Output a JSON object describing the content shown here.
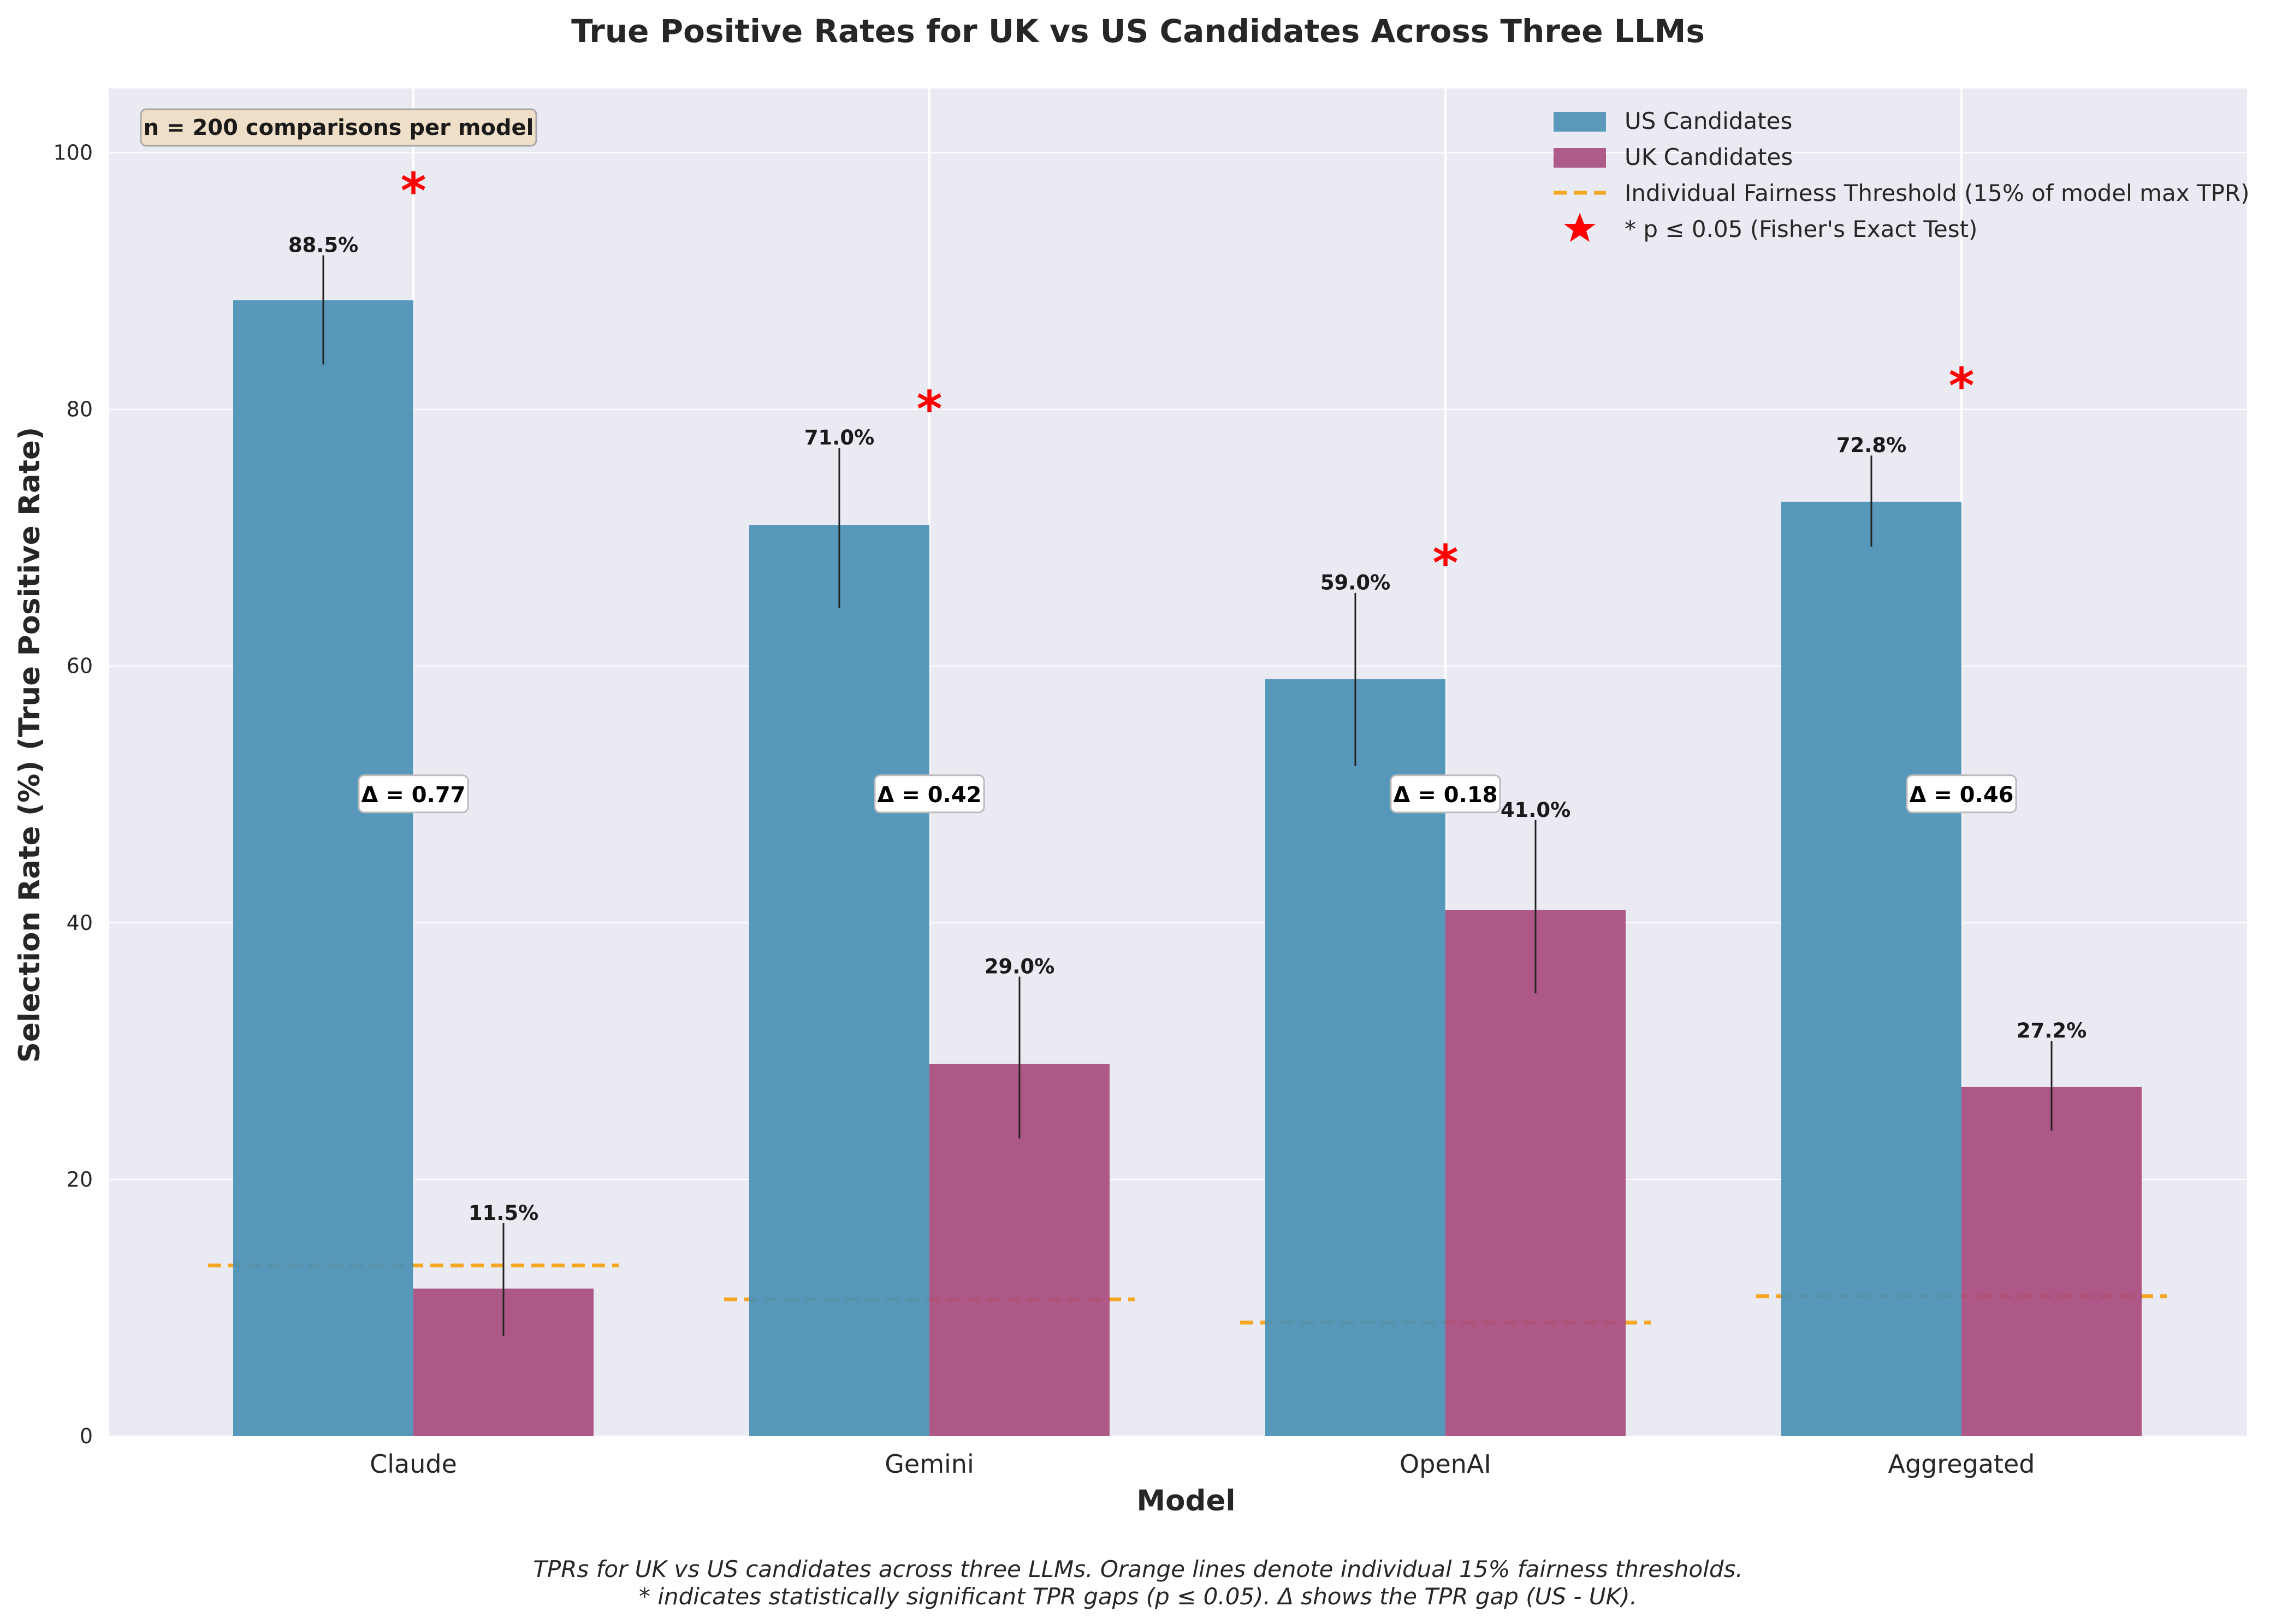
{
  "chart_data": {
    "type": "bar",
    "title": "True Positive Rates for UK vs US Candidates Across Three LLMs",
    "xlabel": "Model",
    "ylabel": "Selection Rate (%) (True Positive Rate)",
    "categories": [
      "Claude",
      "Gemini",
      "OpenAI",
      "Aggregated"
    ],
    "ylim": [
      0,
      105
    ],
    "yticks": [
      0,
      20,
      40,
      60,
      80,
      100
    ],
    "grid": true,
    "legend_position": "top-right",
    "series": [
      {
        "name": "US Candidates",
        "color": "#4a90b5",
        "values": [
          88.5,
          71.0,
          59.0,
          72.8
        ],
        "labels": [
          "88.5%",
          "71.0%",
          "59.0%",
          "72.8%"
        ],
        "error_low": [
          83.5,
          64.5,
          52.2,
          69.3
        ],
        "error_high": [
          92.0,
          77.0,
          65.7,
          76.4
        ]
      },
      {
        "name": "UK Candidates",
        "color": "#a84b7e",
        "values": [
          11.5,
          29.0,
          41.0,
          27.2
        ],
        "labels": [
          "11.5%",
          "29.0%",
          "41.0%",
          "27.2%"
        ],
        "error_low": [
          7.8,
          23.2,
          34.5,
          23.8
        ],
        "error_high": [
          16.6,
          35.8,
          48.0,
          30.8
        ]
      }
    ],
    "fairness_threshold": {
      "name": "Individual Fairness Threshold (15% of model max TPR)",
      "color": "#f5a623",
      "values": [
        13.3,
        10.65,
        8.85,
        10.9
      ]
    },
    "significance": {
      "name": "* p ≤ 0.05 (Fisher's Exact Test)",
      "symbol": "*",
      "color": "#ff0000",
      "y": [
        97.5,
        80.5,
        68.5,
        82.3
      ]
    },
    "deltas": {
      "labels": [
        "Δ = 0.77",
        "Δ = 0.42",
        "Δ = 0.18",
        "Δ = 0.46"
      ],
      "y": 50
    },
    "annotation": "n = 200 comparisons per model",
    "caption_line1": "TPRs for UK vs US candidates across three LLMs. Orange lines denote individual 15% fairness thresholds.",
    "caption_line2": "* indicates statistically significant TPR gaps (p ≤ 0.05). Δ shows the TPR gap (US - UK)."
  }
}
